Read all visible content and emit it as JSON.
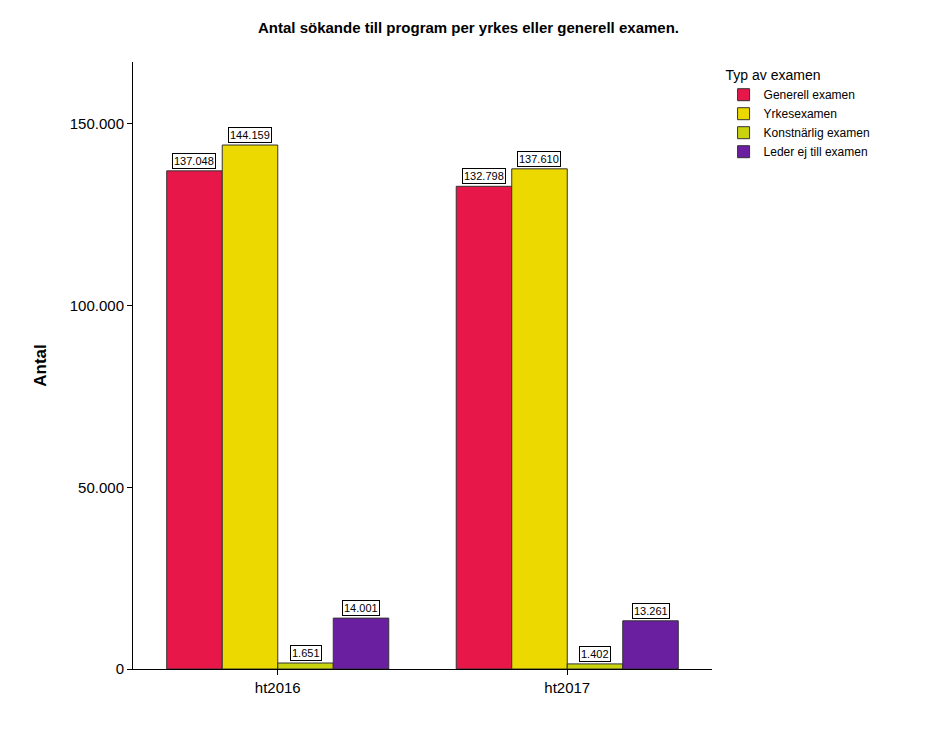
{
  "chart_data": {
    "type": "bar",
    "title": "Antal sökande till program per yrkes eller generell examen.",
    "y_label": "Antal",
    "legend_title": "Typ av examen",
    "categories": [
      "ht2016",
      "ht2017"
    ],
    "series": [
      {
        "name": "Generell examen",
        "color": "#e8174a",
        "values": [
          137048,
          132798
        ],
        "value_labels": [
          "137.048",
          "132.798"
        ]
      },
      {
        "name": "Yrkesexamen",
        "color": "#ecd900",
        "values": [
          144159,
          137610
        ],
        "value_labels": [
          "144.159",
          "137.610"
        ]
      },
      {
        "name": "Konstnärlig examen",
        "color": "#c9d40f",
        "values": [
          1651,
          1402
        ],
        "value_labels": [
          "1.651",
          "1.402"
        ]
      },
      {
        "name": "Leder ej till examen",
        "color": "#6a1fa0",
        "values": [
          14001,
          13261
        ],
        "value_labels": [
          "14.001",
          "13.261"
        ]
      }
    ],
    "ylim": [
      0,
      167000
    ],
    "yticks": [
      0,
      {
        "value": 50000,
        "label": "50.000"
      },
      {
        "value": 100000,
        "label": "100.000"
      },
      {
        "value": 150000,
        "label": "150.000"
      }
    ],
    "grid": false,
    "legend": "top right",
    "data_labels": true
  }
}
